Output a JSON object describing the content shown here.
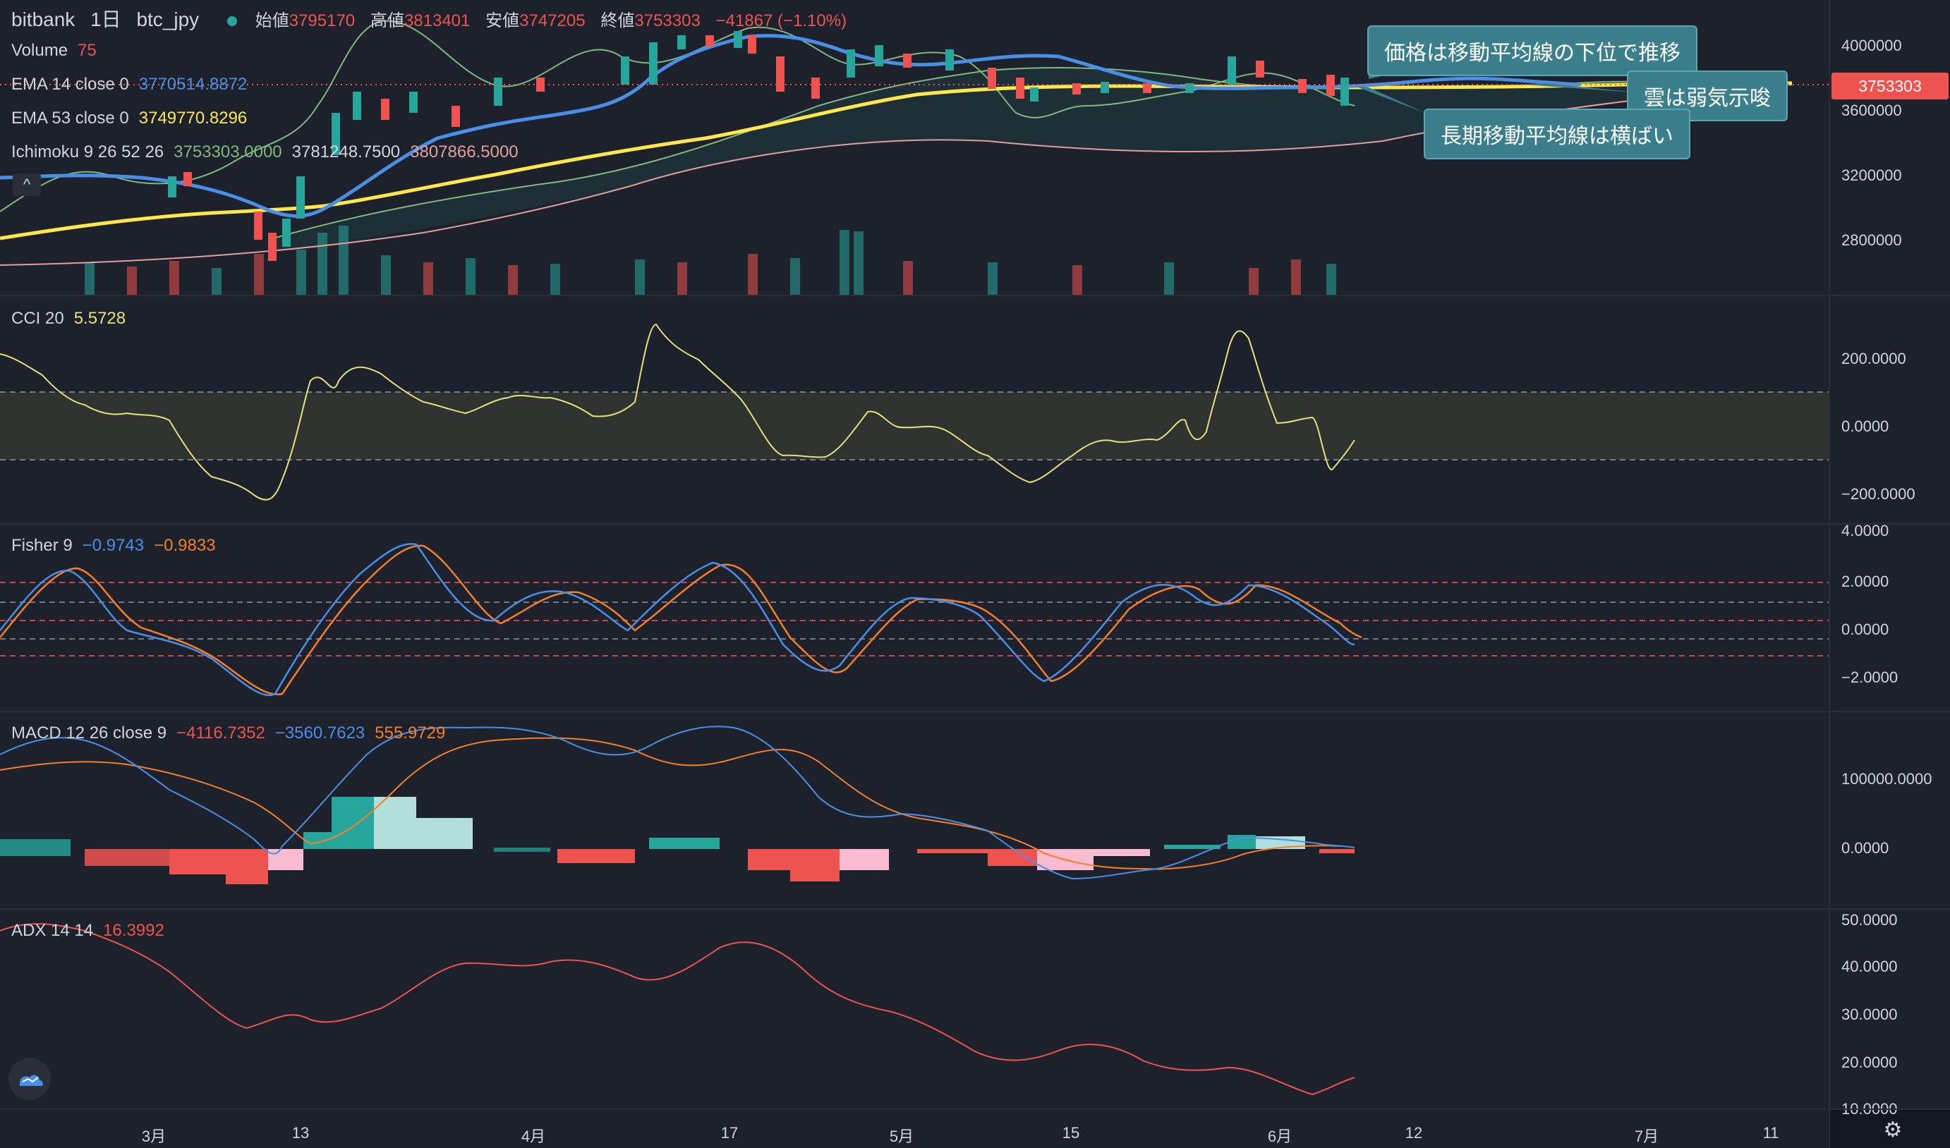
{
  "header": {
    "exchange": "bitbank",
    "timeframe": "1日",
    "symbol": "btc_jpy",
    "open_label": "始値",
    "open": "3795170",
    "high_label": "高値",
    "high": "3813401",
    "low_label": "安値",
    "low": "3747205",
    "close_label": "終値",
    "close": "3753303",
    "change": "−41867 (−1.10%)"
  },
  "indicators": {
    "volume": {
      "name": "Volume",
      "value": "75"
    },
    "ema14": {
      "name": "EMA 14 close 0",
      "value": "3770514.8872"
    },
    "ema53": {
      "name": "EMA 53 close 0",
      "value": "3749770.8296"
    },
    "ichimoku": {
      "name": "Ichimoku 9 26 52 26",
      "v1": "3753303.0000",
      "v2": "3781248.7500",
      "v3": "3807866.5000"
    },
    "cci": {
      "name": "CCI 20",
      "value": "5.5728"
    },
    "fisher": {
      "name": "Fisher 9",
      "v1": "−0.9743",
      "v2": "−0.9833"
    },
    "macd": {
      "name": "MACD 12 26 close 9",
      "v1": "−4116.7352",
      "v2": "−3560.7623",
      "v3": "555.9729"
    },
    "adx": {
      "name": "ADX 14 14",
      "value": "16.3992"
    }
  },
  "annotations": {
    "a1": "価格は移動平均線の下位で推移",
    "a2": "雲は弱気示唆",
    "a3": "長期移動平均線は横ばい"
  },
  "price_axis": [
    "4000000",
    "3600000",
    "3200000",
    "2800000"
  ],
  "current_price_tag": "3753303",
  "cci_axis": [
    "200.0000",
    "0.0000",
    "−200.0000"
  ],
  "fisher_axis": [
    "4.0000",
    "2.0000",
    "0.0000",
    "−2.0000"
  ],
  "macd_axis": [
    "100000.0000",
    "0.0000"
  ],
  "adx_axis": [
    "50.0000",
    "40.0000",
    "30.0000",
    "20.0000",
    "10.0000"
  ],
  "time_axis": [
    "3月",
    "13",
    "4月",
    "17",
    "5月",
    "15",
    "6月",
    "12",
    "7月",
    "11"
  ],
  "colors": {
    "background": "#1c212c",
    "up": "#26a69a",
    "down": "#ef5350",
    "ema14": "#4a8fe7",
    "ema53": "#ffe74c",
    "cci": "#e8e07a",
    "fisher_main": "#4a8fe7",
    "fisher_trigger": "#f57f28",
    "adx": "#ef5350"
  },
  "icons": [
    "collapse-chevron-icon",
    "tradingview-logo-icon",
    "settings-gear-icon"
  ]
}
